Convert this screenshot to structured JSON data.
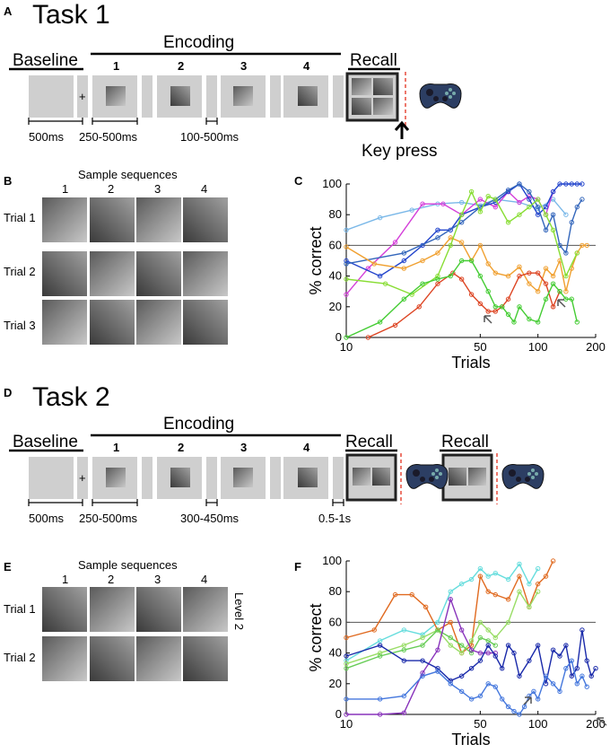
{
  "panels": {
    "a": "A",
    "b": "B",
    "c": "C",
    "d": "D",
    "e": "E",
    "f": "F"
  },
  "task1": {
    "title": "Task 1",
    "baseline": "Baseline",
    "encoding": "Encoding",
    "recall": "Recall",
    "frames": [
      "1",
      "2",
      "3",
      "4"
    ],
    "fixation": "+",
    "t_baseline": "500ms",
    "t_fix": "250-500ms",
    "t_gap": "100-500ms",
    "key_press": "Key press"
  },
  "task2": {
    "title": "Task 2",
    "baseline": "Baseline",
    "encoding": "Encoding",
    "recall": "Recall",
    "recall2": "Recall",
    "frames": [
      "1",
      "2",
      "3",
      "4"
    ],
    "fixation": "+",
    "t_baseline": "500ms",
    "t_fix": "250-500ms",
    "t_gap": "300-450ms",
    "t_end": "0.5-1s"
  },
  "sampleB": {
    "title": "Sample sequences",
    "cols": [
      "1",
      "2",
      "3",
      "4"
    ],
    "rows": [
      "Trial 1",
      "Trial 2",
      "Trial 3"
    ]
  },
  "sampleE": {
    "title": "Sample sequences",
    "cols": [
      "1",
      "2",
      "3",
      "4"
    ],
    "rows": [
      "Trial 1",
      "Trial 2"
    ],
    "level": "Level 2"
  },
  "chart_data": [
    {
      "id": "C",
      "type": "line",
      "xscale": "log",
      "xlim": [
        10,
        200
      ],
      "ylim": [
        0,
        100
      ],
      "xlabel": "Trials",
      "ylabel": "% correct",
      "xticks": [
        "10",
        "50",
        "100",
        "200"
      ],
      "yticks": [
        "0",
        "20",
        "40",
        "60",
        "80",
        "100"
      ],
      "chance": 60,
      "series": [
        {
          "name": "light blue",
          "color": "#7ab8e8",
          "x": [
            10,
            15,
            22,
            30,
            40,
            50,
            60,
            80,
            100,
            120,
            140
          ],
          "y": [
            70,
            78,
            83,
            87,
            88,
            86,
            90,
            88,
            84,
            90,
            80
          ]
        },
        {
          "name": "magenta",
          "color": "#d43ed9",
          "x": [
            10,
            13,
            18,
            25,
            32,
            40,
            50,
            60,
            70,
            80,
            90,
            100,
            110,
            120
          ],
          "y": [
            28,
            45,
            62,
            87,
            87,
            80,
            90,
            85,
            95,
            88,
            92,
            90,
            80,
            95
          ]
        },
        {
          "name": "blue",
          "color": "#2244cc",
          "x": [
            10,
            15,
            20,
            25,
            30,
            35,
            40,
            50,
            60,
            70,
            80,
            90,
            100,
            110,
            120,
            130,
            140,
            150,
            160,
            170
          ],
          "y": [
            50,
            40,
            50,
            60,
            70,
            70,
            80,
            85,
            88,
            95,
            100,
            90,
            80,
            85,
            95,
            100,
            100,
            100,
            100,
            100
          ]
        },
        {
          "name": "steel blue",
          "color": "#3366bb",
          "x": [
            10,
            20,
            30,
            40,
            50,
            60,
            70,
            80,
            90,
            100,
            110,
            120,
            130,
            140,
            150,
            160,
            170
          ],
          "y": [
            48,
            55,
            65,
            75,
            85,
            90,
            96,
            100,
            95,
            85,
            70,
            80,
            60,
            55,
            75,
            85,
            90
          ]
        },
        {
          "name": "orange",
          "color": "#f0a030",
          "x": [
            10,
            14,
            20,
            25,
            30,
            35,
            40,
            45,
            50,
            55,
            60,
            70,
            80,
            90,
            100,
            110,
            120,
            130,
            140,
            150,
            160,
            170,
            180
          ],
          "y": [
            59,
            48,
            45,
            50,
            55,
            65,
            62,
            50,
            60,
            48,
            42,
            40,
            46,
            35,
            30,
            45,
            40,
            50,
            30,
            45,
            55,
            60,
            60
          ]
        },
        {
          "name": "lime",
          "color": "#88dd33",
          "x": [
            10,
            16,
            22,
            30,
            35,
            40,
            45,
            50,
            55,
            60,
            70,
            80,
            90,
            100,
            110,
            120,
            140,
            160
          ],
          "y": [
            38,
            35,
            28,
            40,
            60,
            80,
            95,
            82,
            92,
            90,
            75,
            80,
            85,
            90,
            80,
            70,
            40,
            55
          ]
        },
        {
          "name": "red",
          "color": "#dd4422",
          "x": [
            13,
            18,
            24,
            30,
            36,
            40,
            45,
            50,
            55,
            60,
            65,
            70,
            80,
            90,
            100,
            110,
            120,
            130
          ],
          "y": [
            0,
            8,
            20,
            35,
            42,
            38,
            28,
            22,
            17,
            17,
            20,
            25,
            40,
            42,
            42,
            35,
            20,
            30
          ]
        },
        {
          "name": "green",
          "color": "#44cc33",
          "x": [
            10,
            15,
            20,
            25,
            30,
            35,
            40,
            45,
            50,
            55,
            60,
            65,
            70,
            75,
            80,
            90,
            100,
            110,
            120,
            130,
            140,
            150,
            160
          ],
          "y": [
            0,
            10,
            25,
            35,
            38,
            40,
            50,
            50,
            40,
            30,
            20,
            20,
            15,
            10,
            20,
            12,
            10,
            25,
            35,
            30,
            25,
            25,
            10
          ]
        }
      ]
    },
    {
      "id": "F",
      "type": "line",
      "xscale": "log",
      "xlim": [
        10,
        200
      ],
      "ylim": [
        0,
        100
      ],
      "xlabel": "Trials",
      "ylabel": "% correct",
      "xticks": [
        "10",
        "50",
        "100",
        "200"
      ],
      "yticks": [
        "0",
        "20",
        "40",
        "60",
        "80",
        "100"
      ],
      "chance": 60,
      "series": [
        {
          "name": "cyan",
          "color": "#66dddd",
          "x": [
            10,
            15,
            20,
            25,
            30,
            35,
            40,
            45,
            50,
            55,
            60,
            70,
            80,
            90,
            100
          ],
          "y": [
            35,
            48,
            55,
            52,
            60,
            80,
            85,
            88,
            95,
            90,
            92,
            88,
            98,
            85,
            95
          ]
        },
        {
          "name": "orange",
          "color": "#e06a20",
          "x": [
            10,
            14,
            18,
            22,
            26,
            30,
            35,
            40,
            45,
            50,
            55,
            60,
            70,
            80,
            90,
            100,
            110,
            120
          ],
          "y": [
            50,
            55,
            78,
            78,
            70,
            55,
            60,
            40,
            45,
            90,
            80,
            78,
            75,
            90,
            70,
            85,
            90,
            100
          ]
        },
        {
          "name": "light green",
          "color": "#99dd66",
          "x": [
            10,
            15,
            20,
            25,
            30,
            35,
            40,
            45,
            50,
            55,
            60,
            70,
            80,
            90,
            100
          ],
          "y": [
            33,
            40,
            45,
            50,
            55,
            45,
            40,
            48,
            60,
            55,
            50,
            60,
            80,
            70,
            80
          ]
        },
        {
          "name": "green",
          "color": "#66cc55",
          "x": [
            10,
            15,
            20,
            25,
            30,
            35,
            40,
            45,
            50,
            55,
            60
          ],
          "y": [
            30,
            38,
            42,
            45,
            55,
            50,
            45,
            40,
            50,
            48,
            45
          ]
        },
        {
          "name": "purple",
          "color": "#8833bb",
          "x": [
            10,
            15,
            20,
            25,
            30,
            35,
            40,
            45,
            50,
            55,
            60
          ],
          "y": [
            0,
            0,
            1,
            27,
            42,
            75,
            55,
            42,
            40,
            40,
            40
          ]
        },
        {
          "name": "dark blue",
          "color": "#1a2aaa",
          "x": [
            10,
            15,
            20,
            25,
            30,
            35,
            40,
            45,
            50,
            55,
            60,
            65,
            70,
            75,
            80,
            90,
            100,
            110,
            120,
            130,
            140,
            150,
            160,
            170,
            180,
            190,
            200
          ],
          "y": [
            38,
            45,
            35,
            35,
            30,
            22,
            25,
            30,
            35,
            45,
            38,
            30,
            45,
            40,
            25,
            35,
            45,
            20,
            42,
            38,
            45,
            25,
            30,
            55,
            35,
            25,
            30
          ]
        },
        {
          "name": "blue",
          "color": "#4477dd",
          "x": [
            10,
            15,
            20,
            25,
            30,
            35,
            40,
            45,
            50,
            55,
            60,
            65,
            70,
            75,
            80,
            85,
            90,
            95,
            100,
            110,
            120,
            130,
            140,
            150,
            160,
            170,
            180
          ],
          "y": [
            10,
            10,
            12,
            25,
            28,
            20,
            15,
            10,
            12,
            20,
            18,
            10,
            5,
            2,
            0,
            5,
            12,
            15,
            10,
            25,
            20,
            15,
            30,
            35,
            20,
            25,
            18
          ]
        }
      ]
    }
  ]
}
